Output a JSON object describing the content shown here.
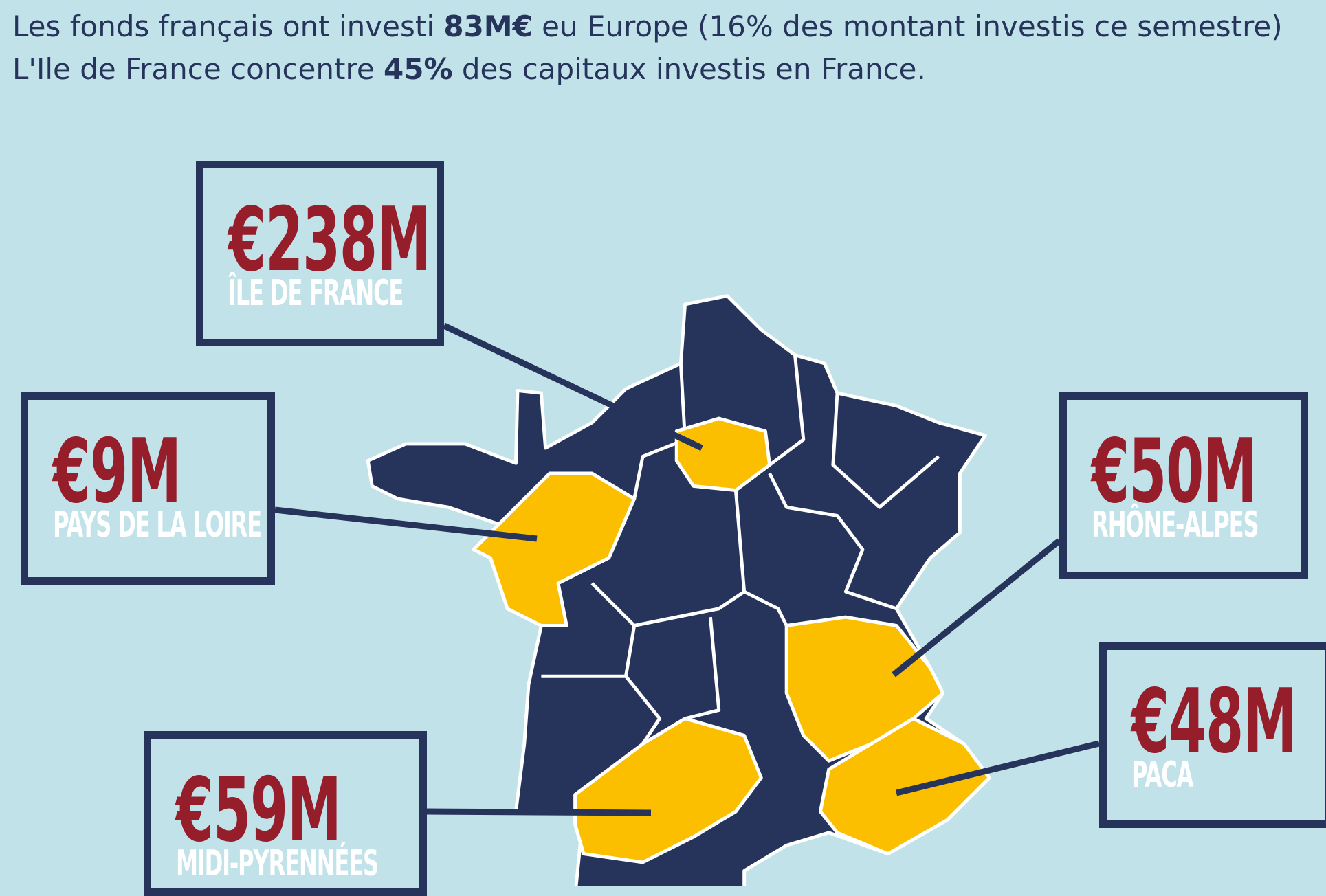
{
  "intro": {
    "lines": [
      [
        {
          "text": "Les fonds français ont investi "
        },
        {
          "text": "83M€",
          "bold": true
        },
        {
          "text": " eu Europe (16% des montant investis ce semestre)"
        }
      ],
      [
        {
          "text": "L'Ile de France concentre "
        },
        {
          "text": "45%",
          "bold": true
        },
        {
          "text": " des capitaux investis en France."
        }
      ]
    ]
  },
  "callouts": [
    {
      "amount": "€238M",
      "region": "ÎLE DE FRANCE"
    },
    {
      "amount": "€9M",
      "region": "PAYS DE LA LOIRE"
    },
    {
      "amount": "€50M",
      "region": "RHÔNE-ALPES"
    },
    {
      "amount": "€48M",
      "region": "PACA"
    },
    {
      "amount": "€59M",
      "region": "MIDI-PYRENNÉES"
    }
  ]
}
